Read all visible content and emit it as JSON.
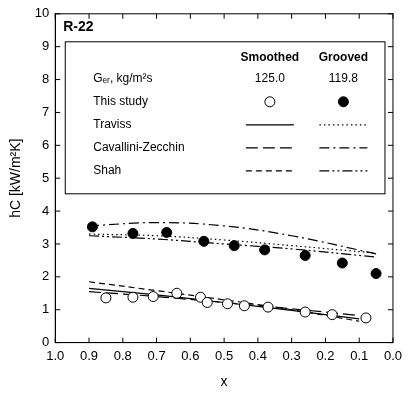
{
  "chart_data": {
    "type": "scatter",
    "title": "R-22",
    "x_label": "x",
    "y_label": "hC [kW/m²K]",
    "xlim": [
      1.0,
      0.0
    ],
    "xticks": [
      {
        "value": 1.0,
        "label": "1.0"
      },
      0.9,
      0.8,
      0.7,
      0.6,
      0.5,
      0.4,
      0.3,
      0.2,
      0.1,
      {
        "value": 0.0,
        "label": "0.0"
      }
    ],
    "ylim": [
      0,
      10
    ],
    "yticks": [
      0,
      1,
      2,
      3,
      4,
      5,
      6,
      7,
      8,
      9,
      10
    ],
    "grid": false,
    "legend": "upper left",
    "legend_columns": [
      "Smoothed",
      "Grooved"
    ],
    "mass_flux": {
      "label": "Gₑᵣ, kg/m²s",
      "values": [
        {
          "value": 125.0,
          "label": "125.0"
        },
        {
          "value": 119.8,
          "label": "119.8"
        }
      ]
    },
    "series": [
      {
        "name": "This study",
        "column": "Smoothed",
        "type": "scatter",
        "marker": "open_circle",
        "color": "#000000",
        "x": [
          0.85,
          0.77,
          0.71,
          0.64,
          0.57,
          0.55,
          0.49,
          0.44,
          0.37,
          0.26,
          0.18,
          0.08
        ],
        "values": [
          1.36,
          1.38,
          1.4,
          1.5,
          1.38,
          1.22,
          1.18,
          1.12,
          1.08,
          0.93,
          0.85,
          0.75
        ]
      },
      {
        "name": "This study",
        "column": "Grooved",
        "type": "scatter",
        "marker": "filled_circle",
        "color": "#000000",
        "x": [
          0.89,
          0.77,
          0.67,
          0.56,
          0.47,
          0.38,
          0.26,
          0.15,
          0.05
        ],
        "values": [
          3.52,
          3.32,
          3.35,
          3.08,
          2.95,
          2.82,
          2.65,
          2.42,
          2.1
        ]
      },
      {
        "name": "Traviss",
        "column": "Smoothed",
        "type": "line",
        "line_style": "solid",
        "color": "#000000",
        "x": [
          0.9,
          0.7,
          0.5,
          0.3,
          0.1
        ],
        "values": [
          1.65,
          1.45,
          1.22,
          0.98,
          0.72
        ]
      },
      {
        "name": "Traviss",
        "column": "Grooved",
        "type": "line",
        "line_style": "dotted",
        "color": "#000000",
        "x": [
          0.9,
          0.7,
          0.5,
          0.3,
          0.05
        ],
        "values": [
          3.3,
          3.25,
          3.12,
          2.95,
          2.72
        ]
      },
      {
        "name": "Cavallini-Zecchin",
        "column": "Smoothed",
        "type": "line",
        "line_style": "longdash",
        "color": "#000000",
        "x": [
          0.9,
          0.7,
          0.5,
          0.3,
          0.1
        ],
        "values": [
          1.55,
          1.4,
          1.22,
          1.03,
          0.82
        ]
      },
      {
        "name": "Cavallini-Zecchin",
        "column": "Grooved",
        "type": "line",
        "line_style": "dashdot",
        "color": "#000000",
        "x": [
          0.9,
          0.7,
          0.5,
          0.3,
          0.05
        ],
        "values": [
          3.55,
          3.65,
          3.55,
          3.25,
          2.7
        ]
      },
      {
        "name": "Shah",
        "column": "Smoothed",
        "type": "line",
        "line_style": "dashed",
        "color": "#000000",
        "x": [
          0.9,
          0.7,
          0.5,
          0.3,
          0.1
        ],
        "values": [
          1.85,
          1.58,
          1.3,
          1.0,
          0.65
        ]
      },
      {
        "name": "Shah",
        "column": "Grooved",
        "type": "line",
        "line_style": "dashdotdot",
        "color": "#000000",
        "x": [
          0.9,
          0.7,
          0.5,
          0.3,
          0.05
        ],
        "values": [
          3.25,
          3.15,
          3.0,
          2.85,
          2.6
        ]
      }
    ]
  }
}
